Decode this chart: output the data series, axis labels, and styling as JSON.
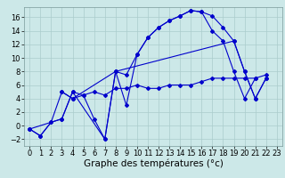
{
  "series": [
    {
      "x": [
        0,
        1,
        2,
        3,
        4,
        5,
        6,
        7,
        8,
        9,
        10,
        11,
        12,
        13,
        14,
        15,
        16,
        17,
        18,
        19,
        20,
        21,
        22
      ],
      "y": [
        -0.5,
        -1.5,
        0.5,
        1.0,
        5.0,
        4.5,
        1.0,
        -2.0,
        8.0,
        3.0,
        10.5,
        13.0,
        14.5,
        15.5,
        16.2,
        17.0,
        16.8,
        16.2,
        14.5,
        12.5,
        8.0,
        4.0,
        7.0
      ]
    },
    {
      "x": [
        0,
        1,
        2,
        3,
        4,
        5,
        6,
        7,
        8,
        9,
        10,
        11,
        12,
        13,
        14,
        15,
        16,
        17,
        18,
        19,
        20,
        21,
        22
      ],
      "y": [
        -0.5,
        -1.5,
        0.5,
        5.0,
        4.0,
        4.5,
        5.0,
        4.5,
        5.5,
        5.5,
        6.0,
        5.5,
        5.5,
        6.0,
        6.0,
        6.0,
        6.5,
        7.0,
        7.0,
        7.0,
        7.0,
        7.0,
        7.5
      ]
    },
    {
      "x": [
        3,
        4,
        8,
        9,
        10,
        11,
        12,
        13,
        14,
        15,
        16,
        17,
        18,
        19,
        20,
        21,
        22
      ],
      "y": [
        5.0,
        4.0,
        8.0,
        7.5,
        10.5,
        13.0,
        14.5,
        15.5,
        16.2,
        17.0,
        16.8,
        14.0,
        12.5,
        8.0,
        4.0,
        7.0,
        null
      ]
    },
    {
      "x": [
        0,
        3,
        4,
        7,
        8,
        19,
        20,
        21,
        22
      ],
      "y": [
        -0.5,
        1.0,
        5.0,
        -2.0,
        8.0,
        12.5,
        8.0,
        4.0,
        7.0
      ]
    }
  ],
  "color": "#0000cc",
  "bg_color": "#cce8e8",
  "grid_color": "#aacccc",
  "xlim": [
    -0.5,
    23.5
  ],
  "ylim": [
    -3.0,
    17.5
  ],
  "yticks": [
    -2,
    0,
    2,
    4,
    6,
    8,
    10,
    12,
    14,
    16
  ],
  "xticks": [
    0,
    1,
    2,
    3,
    4,
    5,
    6,
    7,
    8,
    9,
    10,
    11,
    12,
    13,
    14,
    15,
    16,
    17,
    18,
    19,
    20,
    21,
    22,
    23
  ],
  "xlabel": "Graphe des températures (°c)",
  "label_fontsize": 7.5,
  "tick_fontsize": 6.0
}
